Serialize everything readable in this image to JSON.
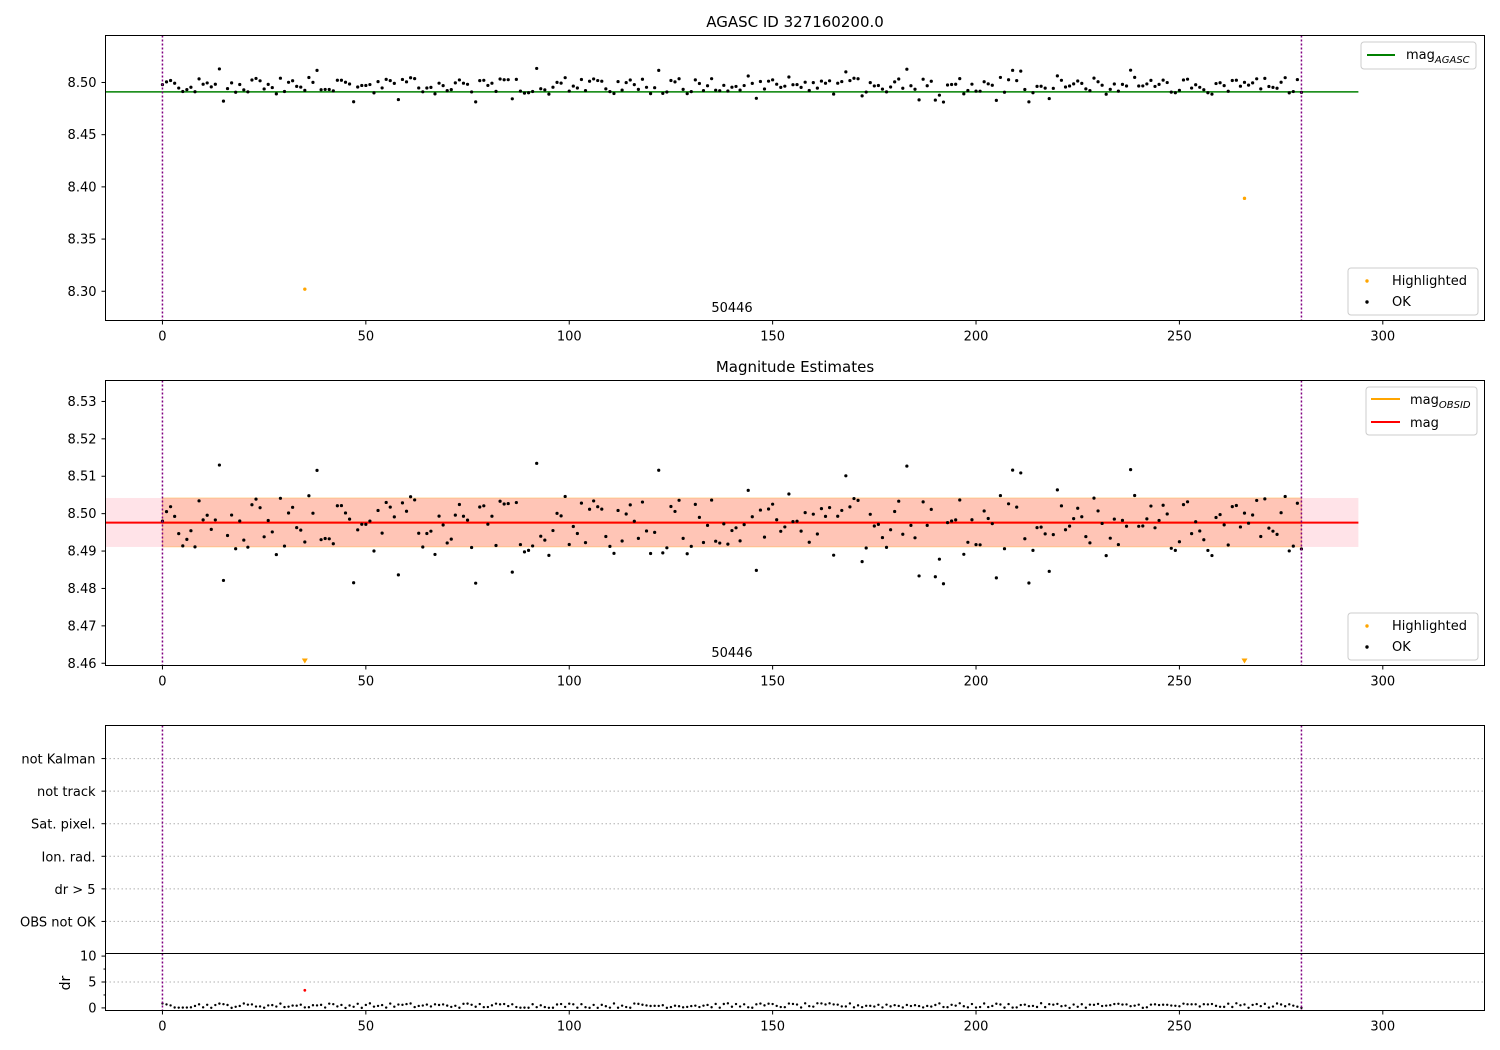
{
  "figure": {
    "title_top": "AGASC ID 327160200.0",
    "title_mid": "Magnitude Estimates",
    "obsid_label": "50446"
  },
  "colors": {
    "agasc_line": "#008000",
    "mag_obsid": "#ffa500",
    "mag_line": "#ff0000",
    "band_mag": "#ffc0cb",
    "band_obsid": "#ffa07a",
    "highlight": "#ffa500",
    "ok": "#000000",
    "obs_boundary": "#800080",
    "dr_highlight": "#ff0000"
  },
  "chart_data": [
    {
      "type": "scatter",
      "title": "AGASC ID 327160200.0",
      "xlim": [
        -14,
        325
      ],
      "ylim": [
        8.272,
        8.545
      ],
      "xticks": [
        0,
        50,
        100,
        150,
        200,
        250,
        300
      ],
      "xticklabels": [
        "0",
        "50",
        "100",
        "150",
        "200",
        "250",
        "300"
      ],
      "yticks": [
        8.3,
        8.35,
        8.4,
        8.45,
        8.5
      ],
      "yticklabels": [
        "8.30",
        "8.35",
        "8.40",
        "8.45",
        "8.50"
      ],
      "obs_boundaries": [
        0,
        280
      ],
      "annotation": "50446",
      "mag_agasc": 8.491,
      "mag_agasc_x_range": [
        -14,
        294
      ],
      "series_ok_summary": {
        "n": 281,
        "y_min": 8.481,
        "y_max": 8.514,
        "median": 8.497
      },
      "highlighted": [
        {
          "x": 35,
          "y": 8.302
        },
        {
          "x": 266,
          "y": 8.389
        }
      ],
      "legend_line": [
        {
          "label": "mag",
          "sub": "AGASC"
        }
      ],
      "legend_points": [
        {
          "label": "Highlighted"
        },
        {
          "label": "OK"
        }
      ]
    },
    {
      "type": "scatter",
      "title": "Magnitude Estimates",
      "xlim": [
        -14,
        325
      ],
      "ylim": [
        8.4594,
        8.5356
      ],
      "xticks": [
        0,
        50,
        100,
        150,
        200,
        250,
        300
      ],
      "xticklabels": [
        "0",
        "50",
        "100",
        "150",
        "200",
        "250",
        "300"
      ],
      "yticks": [
        8.46,
        8.47,
        8.48,
        8.49,
        8.5,
        8.51,
        8.52,
        8.53
      ],
      "yticklabels": [
        "8.46",
        "8.47",
        "8.48",
        "8.49",
        "8.50",
        "8.51",
        "8.52",
        "8.53"
      ],
      "obs_boundaries": [
        0,
        280
      ],
      "annotation": "50446",
      "mag": 8.4976,
      "mag_band": [
        8.4911,
        8.5042
      ],
      "mag_band_x_range": [
        -14,
        294
      ],
      "mag_obsid": 8.4976,
      "mag_obsid_band": [
        8.4911,
        8.5042
      ],
      "mag_obsid_x_range": [
        0,
        280
      ],
      "highlighted_offscale": [
        {
          "x": 35,
          "y": 8.302
        },
        {
          "x": 266,
          "y": 8.389
        }
      ],
      "legend_line": [
        {
          "label": "mag",
          "sub": "OBSID"
        },
        {
          "label": "mag",
          "sub": ""
        }
      ],
      "legend_points": [
        {
          "label": "Highlighted"
        },
        {
          "label": "OK"
        }
      ]
    },
    {
      "type": "scatter",
      "title": "",
      "xlim": [
        -14,
        325
      ],
      "categories": [
        "not Kalman",
        "not track",
        "Sat. pixel.",
        "Ion. rad.",
        "dr > 5",
        "OBS not OK"
      ],
      "obs_boundaries": [
        0,
        280
      ],
      "flags": []
    },
    {
      "type": "scatter",
      "title": "",
      "ylabel": "dr",
      "xlim": [
        -14,
        325
      ],
      "ylim": [
        -0.5,
        10.5
      ],
      "yticks": [
        0,
        5,
        10
      ],
      "yticklabels": [
        "0",
        "5",
        "10"
      ],
      "xticks": [
        0,
        50,
        100,
        150,
        200,
        250,
        300
      ],
      "xticklabels": [
        "0",
        "50",
        "100",
        "150",
        "200",
        "250",
        "300"
      ],
      "obs_boundaries": [
        0,
        280
      ],
      "dr_ok_range": [
        0.0,
        0.9
      ],
      "dr_highlighted": [
        {
          "x": 35,
          "y": 3.4
        }
      ]
    }
  ]
}
